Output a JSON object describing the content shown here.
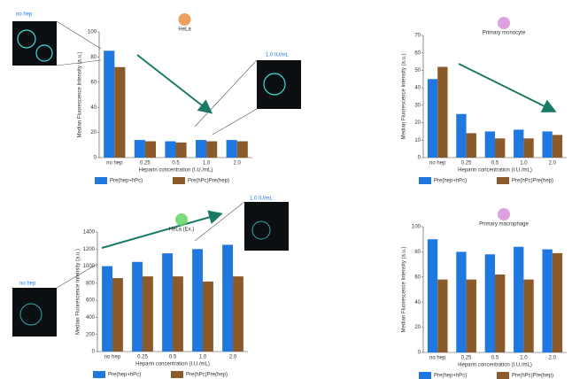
{
  "chart_data": [
    {
      "type": "bar",
      "title": "HeLa",
      "ylabel": "Median Fluorescence Intensity (a.u.)",
      "xlabel": "Heparin concentration (I.U./mL)",
      "categories": [
        "no hep",
        "0.25",
        "0.5",
        "1.0",
        "2.0"
      ],
      "series": [
        {
          "name": "Pre(hep+hPc)",
          "color": "#1f77e0",
          "values": [
            85,
            14,
            13,
            14,
            14
          ]
        },
        {
          "name": "Pre(hPc)Pre(hep)",
          "color": "#8b5a2b",
          "values": [
            72,
            13,
            12,
            13,
            13
          ]
        }
      ],
      "ylim": [
        0,
        100
      ],
      "yticks": [
        0,
        20,
        40,
        60,
        80,
        100
      ],
      "annotations": [
        "no hep",
        "1.0 IU/mL"
      ]
    },
    {
      "type": "bar",
      "title": "Primary monocyte",
      "ylabel": "Median Fluorescence Intensity (a.u.)",
      "xlabel": "Heparin concentration (I.U./mL)",
      "categories": [
        "no hep",
        "0.25",
        "0.5",
        "1.0",
        "2.0"
      ],
      "series": [
        {
          "name": "Pre(hep+hPc)",
          "color": "#1f77e0",
          "values": [
            45,
            25,
            15,
            16,
            15
          ]
        },
        {
          "name": "Pre(hPc)Pre(hep)",
          "color": "#8b5a2b",
          "values": [
            52,
            14,
            11,
            11,
            13
          ]
        }
      ],
      "ylim": [
        0,
        70
      ],
      "yticks": [
        0,
        10,
        20,
        30,
        40,
        50,
        60,
        70
      ],
      "annotations": []
    },
    {
      "type": "bar",
      "title": "HeLa (Ex.)",
      "ylabel": "Median Fluorescence Intensity (a.u.)",
      "xlabel": "Heparin concentration (I.U./mL)",
      "categories": [
        "no hep",
        "0.25",
        "0.5",
        "1.0",
        "2.0"
      ],
      "series": [
        {
          "name": "Pre(hep+hPc)",
          "color": "#1f77e0",
          "values": [
            1000,
            1050,
            1150,
            1200,
            1250
          ]
        },
        {
          "name": "Pre(hPc)Pre(hep)",
          "color": "#8b5a2b",
          "values": [
            860,
            880,
            880,
            820,
            880
          ]
        }
      ],
      "ylim": [
        0,
        1400
      ],
      "yticks": [
        0,
        200,
        400,
        600,
        800,
        1000,
        1200,
        1400
      ],
      "annotations": [
        "no hep",
        "1.0 IU/mL"
      ]
    },
    {
      "type": "bar",
      "title": "Primary macrophage",
      "ylabel": "Median Fluorescence Intensity (a.u.)",
      "xlabel": "Heparin concentration (I.U./mL)",
      "categories": [
        "no hep",
        "0.25",
        "0.5",
        "1.0",
        "2.0"
      ],
      "series": [
        {
          "name": "Pre(hep+hPc)",
          "color": "#1f77e0",
          "values": [
            90,
            80,
            78,
            84,
            82
          ]
        },
        {
          "name": "Pre(hPc)Pre(hep)",
          "color": "#8b5a2b",
          "values": [
            58,
            58,
            62,
            58,
            79
          ]
        }
      ],
      "ylim": [
        0,
        100
      ],
      "yticks": [
        0,
        20,
        40,
        60,
        80,
        100
      ],
      "annotations": []
    }
  ]
}
